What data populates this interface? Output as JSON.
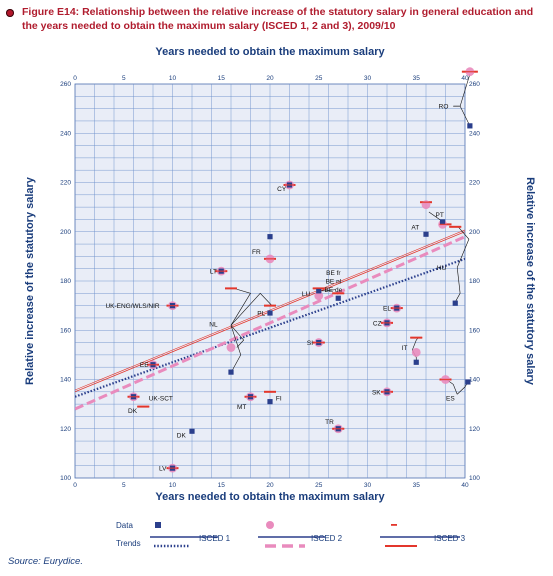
{
  "figure": {
    "title": "Figure E14: Relationship between the relative increase of the statutory salary in general education and the years needed to obtain the maximum salary (ISCED 1, 2 and 3), 2009/10",
    "source": "Source: Eurydice."
  },
  "chart_data": {
    "type": "scatter",
    "x_title_top": "Years needed to obtain the maximum salary",
    "x_title_bottom": "Years needed to obtain the maximum salary",
    "y_title_left": "Relative increase of the statutory salary",
    "y_title_right": "Relative increase of the statutory salary",
    "xlim": [
      0,
      40
    ],
    "ylim": [
      100,
      260
    ],
    "x_ticks": [
      0,
      5,
      10,
      15,
      20,
      25,
      30,
      35,
      40
    ],
    "y_ticks": [
      100,
      120,
      140,
      160,
      180,
      200,
      220,
      240,
      260
    ],
    "grid": true,
    "colors": {
      "isced1": "#2b3f8c",
      "isced2": "#e98bbd",
      "isced3": "#e3362c",
      "grid": "#6a8fc9",
      "panel": "#e9edf7",
      "title": "#b01c2e",
      "axis_text": "#1a3d7c"
    },
    "series": [
      {
        "name": "ISCED 1",
        "marker": "square",
        "points": [
          {
            "label": "RO",
            "x": 40.5,
            "y": 243
          },
          {
            "label": "AT",
            "x": 36,
            "y": 199
          },
          {
            "label": "PT",
            "x": 37.7,
            "y": 204
          },
          {
            "label": "HU",
            "x": 39,
            "y": 171
          },
          {
            "label": "ES",
            "x": 40.3,
            "y": 139
          },
          {
            "label": "IT",
            "x": 35,
            "y": 147
          },
          {
            "label": "CY",
            "x": 22,
            "y": 219
          },
          {
            "label": "FR",
            "x": 20,
            "y": 198
          },
          {
            "label": "LT",
            "x": 15,
            "y": 184
          },
          {
            "label": "UK-ENG/WLS/NIR",
            "x": 10,
            "y": 170
          },
          {
            "label": "PL",
            "x": 20,
            "y": 167
          },
          {
            "label": "LU",
            "x": 25,
            "y": 176
          },
          {
            "label": "BE fr/nl/de",
            "x": 27,
            "y": 173
          },
          {
            "label": "EL",
            "x": 33,
            "y": 169
          },
          {
            "label": "CZ",
            "x": 32,
            "y": 163
          },
          {
            "label": "SI",
            "x": 25,
            "y": 155
          },
          {
            "label": "NL",
            "x": 16,
            "y": 143
          },
          {
            "label": "EE",
            "x": 8,
            "y": 146
          },
          {
            "label": "UK-SCT",
            "x": 6,
            "y": 133
          },
          {
            "label": "SK",
            "x": 32,
            "y": 135
          },
          {
            "label": "MT",
            "x": 18,
            "y": 133
          },
          {
            "label": "FI",
            "x": 20,
            "y": 131
          },
          {
            "label": "TR",
            "x": 27,
            "y": 120
          },
          {
            "label": "DK",
            "x": 12,
            "y": 119
          },
          {
            "label": "LV",
            "x": 10,
            "y": 104
          }
        ]
      },
      {
        "name": "ISCED 2",
        "marker": "circle",
        "points": [
          {
            "label": "RO",
            "x": 40.5,
            "y": 265
          },
          {
            "label": "AT",
            "x": 36,
            "y": 211
          },
          {
            "label": "PT",
            "x": 37.7,
            "y": 203
          },
          {
            "label": "CY",
            "x": 22,
            "y": 219
          },
          {
            "label": "FR",
            "x": 20,
            "y": 189
          },
          {
            "label": "LT",
            "x": 15,
            "y": 184
          },
          {
            "label": "LU",
            "x": 25,
            "y": 174
          },
          {
            "label": "IT",
            "x": 35,
            "y": 151
          },
          {
            "label": "SI",
            "x": 25,
            "y": 155
          },
          {
            "label": "EE",
            "x": 8,
            "y": 146
          },
          {
            "label": "UK-SCT",
            "x": 6,
            "y": 133
          },
          {
            "label": "SK",
            "x": 32,
            "y": 135
          },
          {
            "label": "MT",
            "x": 18,
            "y": 133
          },
          {
            "label": "TR",
            "x": 27,
            "y": 120
          },
          {
            "label": "ES",
            "x": 38,
            "y": 140
          },
          {
            "label": "EL",
            "x": 33,
            "y": 169
          },
          {
            "label": "CZ",
            "x": 32,
            "y": 163
          },
          {
            "label": "LV",
            "x": 10,
            "y": 104
          },
          {
            "label": "NL",
            "x": 16,
            "y": 153
          },
          {
            "label": "UK-ENG/WLS/NIR",
            "x": 10,
            "y": 170
          }
        ]
      },
      {
        "name": "ISCED 3",
        "marker": "dash",
        "points": [
          {
            "label": "RO",
            "x": 40.5,
            "y": 265
          },
          {
            "label": "AT",
            "x": 36,
            "y": 212
          },
          {
            "label": "PT",
            "x": 38,
            "y": 203
          },
          {
            "label": "HU",
            "x": 39,
            "y": 202
          },
          {
            "label": "CY",
            "x": 22,
            "y": 219
          },
          {
            "label": "FR",
            "x": 20,
            "y": 189
          },
          {
            "label": "LT",
            "x": 15,
            "y": 184
          },
          {
            "label": "NL",
            "x": 16,
            "y": 177
          },
          {
            "label": "PL",
            "x": 20,
            "y": 170
          },
          {
            "label": "LU",
            "x": 25,
            "y": 177
          },
          {
            "label": "BE fr/nl/de",
            "x": 27,
            "y": 175
          },
          {
            "label": "EL",
            "x": 33,
            "y": 169
          },
          {
            "label": "CZ",
            "x": 32,
            "y": 163
          },
          {
            "label": "IT",
            "x": 35,
            "y": 157
          },
          {
            "label": "SI",
            "x": 25,
            "y": 155
          },
          {
            "label": "EE",
            "x": 8,
            "y": 146
          },
          {
            "label": "UK-SCT",
            "x": 6,
            "y": 133
          },
          {
            "label": "DK",
            "x": 7,
            "y": 129
          },
          {
            "label": "SK",
            "x": 32,
            "y": 135
          },
          {
            "label": "MT",
            "x": 18,
            "y": 133
          },
          {
            "label": "FI",
            "x": 20,
            "y": 135
          },
          {
            "label": "TR",
            "x": 27,
            "y": 120
          },
          {
            "label": "ES",
            "x": 38,
            "y": 140
          },
          {
            "label": "UK-ENG/WLS/NIR",
            "x": 10,
            "y": 170
          },
          {
            "label": "LV",
            "x": 10,
            "y": 104
          }
        ]
      }
    ],
    "trends": [
      {
        "name": "ISCED 1",
        "style": "dotted",
        "x": [
          0,
          40
        ],
        "y": [
          133,
          189
        ]
      },
      {
        "name": "ISCED 2",
        "style": "dashed",
        "x": [
          0,
          40
        ],
        "y": [
          128,
          198
        ]
      },
      {
        "name": "ISCED 3",
        "style": "solid",
        "x": [
          0,
          40
        ],
        "y": [
          135,
          200
        ]
      }
    ],
    "labels": [
      {
        "text": "RO",
        "x": 37.8,
        "y": 251
      },
      {
        "text": "CY",
        "x": 21.2,
        "y": 217.5
      },
      {
        "text": "AT",
        "x": 34.9,
        "y": 202
      },
      {
        "text": "PT",
        "x": 37.4,
        "y": 207
      },
      {
        "text": "HU",
        "x": 37.6,
        "y": 185.5
      },
      {
        "text": "FR",
        "x": 18.6,
        "y": 192
      },
      {
        "text": "LT",
        "x": 14.2,
        "y": 184
      },
      {
        "text": "BE fr",
        "x": 26.5,
        "y": 183.5
      },
      {
        "text": "BE nl",
        "x": 26.5,
        "y": 180
      },
      {
        "text": "BE de",
        "x": 26.5,
        "y": 176.5
      },
      {
        "text": "LU",
        "x": 23.7,
        "y": 175
      },
      {
        "text": "EL",
        "x": 32,
        "y": 169
      },
      {
        "text": "UK-ENG/WLS/NIR",
        "x": 5.9,
        "y": 170
      },
      {
        "text": "PL",
        "x": 19.1,
        "y": 167
      },
      {
        "text": "CZ",
        "x": 31,
        "y": 163
      },
      {
        "text": "NL",
        "x": 14.2,
        "y": 162.5
      },
      {
        "text": "SI",
        "x": 24.1,
        "y": 155
      },
      {
        "text": "IT",
        "x": 33.8,
        "y": 153
      },
      {
        "text": "EE",
        "x": 7.1,
        "y": 146
      },
      {
        "text": "SK",
        "x": 30.9,
        "y": 135
      },
      {
        "text": "UK-SCT",
        "x": 8.8,
        "y": 132.5
      },
      {
        "text": "DK",
        "x": 5.9,
        "y": 127.5
      },
      {
        "text": "MT",
        "x": 17.1,
        "y": 129
      },
      {
        "text": "FI",
        "x": 20.9,
        "y": 132.5
      },
      {
        "text": "ES",
        "x": 38.5,
        "y": 132.5
      },
      {
        "text": "TR",
        "x": 26.1,
        "y": 123
      },
      {
        "text": "DK",
        "x": 10.9,
        "y": 117.5
      },
      {
        "text": "LV",
        "x": 9,
        "y": 104
      }
    ],
    "legend": {
      "row1": "Data",
      "row2": "Trends",
      "entries": [
        "ISCED 1",
        "ISCED 2",
        "ISCED 3"
      ]
    }
  }
}
